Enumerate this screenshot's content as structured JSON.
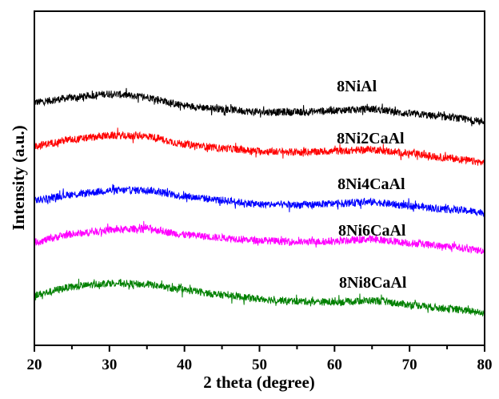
{
  "chart_data": {
    "type": "line",
    "title": "",
    "xlabel": "2 theta (degree)",
    "ylabel": "Intensity (a.u.)",
    "xlim": [
      20,
      80
    ],
    "ylim": [
      0,
      100
    ],
    "xticks": [
      20,
      30,
      40,
      50,
      60,
      70,
      80
    ],
    "xticks_minor": [
      25,
      35,
      45,
      55,
      65,
      75
    ],
    "yticks": [],
    "grid": false,
    "legend": "inline labels at right",
    "x": [
      20,
      25,
      30,
      35,
      40,
      45,
      50,
      55,
      60,
      65,
      70,
      75,
      80
    ],
    "series": [
      {
        "name": "8NiAl",
        "color": "#000000",
        "label_at": [
          60.3,
          76
        ],
        "values": [
          72.7,
          74.1,
          75.3,
          74.3,
          71.7,
          70.7,
          69.8,
          69.8,
          70.3,
          70.7,
          69.3,
          68.3,
          66.9
        ]
      },
      {
        "name": "8Ni2CaAl",
        "color": "#ff0000",
        "label_at": [
          60.3,
          60.4
        ],
        "values": [
          59.7,
          61.6,
          62.8,
          62.6,
          60.2,
          59.0,
          58.1,
          57.8,
          58.1,
          58.6,
          57.4,
          56.1,
          54.7
        ]
      },
      {
        "name": "8Ni4CaAl",
        "color": "#0000ff",
        "label_at": [
          60.4,
          46.8
        ],
        "values": [
          43.4,
          45.1,
          46.3,
          46.5,
          44.6,
          43.4,
          42.2,
          42.0,
          42.4,
          42.9,
          41.7,
          40.8,
          39.8
        ]
      },
      {
        "name": "8Ni6CaAl",
        "color": "#ff00ff",
        "label_at": [
          60.5,
          32.9
        ],
        "values": [
          30.9,
          33.3,
          34.5,
          35.0,
          33.1,
          32.2,
          31.4,
          30.9,
          31.1,
          31.8,
          30.6,
          29.6,
          28.3
        ]
      },
      {
        "name": "8Ni8CaAl",
        "color": "#008000",
        "label_at": [
          60.6,
          17.3
        ],
        "values": [
          15.1,
          17.5,
          18.7,
          18.2,
          16.5,
          15.1,
          13.9,
          13.2,
          12.9,
          13.4,
          12.2,
          11.0,
          9.8
        ]
      }
    ]
  }
}
